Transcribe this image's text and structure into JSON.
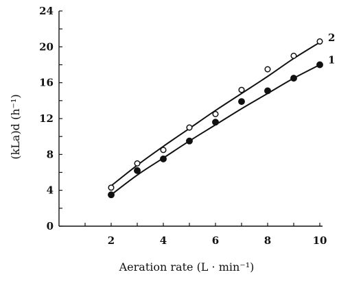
{
  "chart_data": {
    "type": "line",
    "xlabel": "Aeration rate (L · min⁻¹)",
    "ylabel": "(kLa)d (h⁻¹)",
    "xlim": [
      0,
      10
    ],
    "ylim": [
      0,
      24
    ],
    "x_ticks": [
      2,
      4,
      6,
      8,
      10
    ],
    "y_ticks": [
      0,
      4,
      8,
      12,
      16,
      20,
      24
    ],
    "grid": false,
    "series": [
      {
        "name": "2",
        "marker": "open-circle",
        "x": [
          2,
          3,
          4,
          5,
          6,
          7,
          8,
          9,
          10
        ],
        "y": [
          4.3,
          7.0,
          8.5,
          11.0,
          12.5,
          15.2,
          17.5,
          19.0,
          20.6
        ],
        "fit": [
          4.5,
          6.8,
          8.9,
          10.9,
          12.9,
          14.8,
          16.7,
          18.7,
          20.5
        ]
      },
      {
        "name": "1",
        "marker": "filled-circle",
        "x": [
          2,
          3,
          4,
          5,
          6,
          7,
          8,
          9,
          10
        ],
        "y": [
          3.5,
          6.2,
          7.5,
          9.5,
          11.6,
          13.9,
          15.1,
          16.5,
          18.0
        ],
        "fit": [
          3.5,
          5.7,
          7.6,
          9.5,
          11.3,
          13.1,
          14.8,
          16.5,
          18.0
        ]
      }
    ]
  }
}
